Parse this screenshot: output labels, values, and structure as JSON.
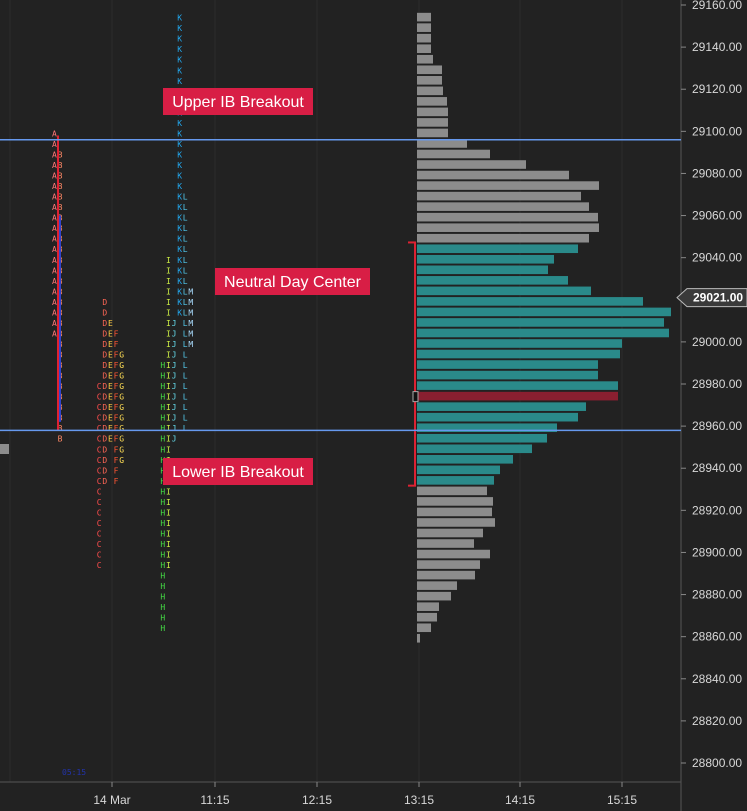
{
  "colors": {
    "background": "#222222",
    "grid": "#2c2c2c",
    "ib_line": "#6699ee",
    "value_area_bar": "#2a8a8a",
    "outer_bar": "#8c8c8c",
    "poc_bar": "#8a1f30",
    "callout_bg": "#d81e45",
    "axis_text": "#d8d8d8"
  },
  "tpo_colors": {
    "A": "#ff7777",
    "B": "#ff8866",
    "C": "#ff4d4d",
    "D": "#ff6655",
    "E": "#ffcc44",
    "F": "#ff5533",
    "G": "#ffdd55",
    "H": "#44dd44",
    "I": "#ccee44",
    "J": "#66ddee",
    "K": "#22a8ee",
    "L": "#55ccee",
    "M": "#aaddff"
  },
  "chart_data": {
    "type": "bar",
    "subtype": "market-profile",
    "y_axis": {
      "min": 28790,
      "max": 29162,
      "ticks": [
        29160,
        29140,
        29120,
        29100,
        29080,
        29060,
        29040,
        29020,
        29000,
        28980,
        28960,
        28940,
        28920,
        28900,
        28880,
        28860,
        28840,
        28820,
        28800
      ]
    },
    "x_axis": {
      "ticks": [
        "14 Mar",
        "11:15",
        "12:15",
        "13:15",
        "14:15",
        "15:15"
      ]
    },
    "current_price": "29021.00",
    "ib_high": 29096,
    "ib_low": 28958,
    "tpo_tail_label": "05:15",
    "profile_bars": [
      {
        "price": 29154,
        "value": 14
      },
      {
        "price": 29149,
        "value": 14
      },
      {
        "price": 29144,
        "value": 14
      },
      {
        "price": 29139,
        "value": 14
      },
      {
        "price": 29134,
        "value": 16
      },
      {
        "price": 29129,
        "value": 25
      },
      {
        "price": 29124,
        "value": 25
      },
      {
        "price": 29119,
        "value": 26
      },
      {
        "price": 29114,
        "value": 30
      },
      {
        "price": 29109,
        "value": 31
      },
      {
        "price": 29104,
        "value": 31
      },
      {
        "price": 29099,
        "value": 31
      },
      {
        "price": 29094,
        "value": 50
      },
      {
        "price": 29089,
        "value": 73
      },
      {
        "price": 29084,
        "value": 109
      },
      {
        "price": 29079,
        "value": 152
      },
      {
        "price": 29074,
        "value": 182
      },
      {
        "price": 29069,
        "value": 164
      },
      {
        "price": 29064,
        "value": 172
      },
      {
        "price": 29059,
        "value": 181
      },
      {
        "price": 29054,
        "value": 182
      },
      {
        "price": 29049,
        "value": 172
      },
      {
        "price": 29044,
        "value": 161
      },
      {
        "price": 29039,
        "value": 137
      },
      {
        "price": 29034,
        "value": 131
      },
      {
        "price": 29029,
        "value": 151
      },
      {
        "price": 29024,
        "value": 174
      },
      {
        "price": 29019,
        "value": 226
      },
      {
        "price": 29014,
        "value": 254
      },
      {
        "price": 29009,
        "value": 247
      },
      {
        "price": 29004,
        "value": 252
      },
      {
        "price": 28999,
        "value": 205
      },
      {
        "price": 28994,
        "value": 203
      },
      {
        "price": 28989,
        "value": 181
      },
      {
        "price": 28984,
        "value": 181
      },
      {
        "price": 28979,
        "value": 201
      },
      {
        "price": 28974,
        "value": 201
      },
      {
        "price": 28969,
        "value": 169
      },
      {
        "price": 28964,
        "value": 161
      },
      {
        "price": 28959,
        "value": 140
      },
      {
        "price": 28954,
        "value": 130
      },
      {
        "price": 28949,
        "value": 115
      },
      {
        "price": 28944,
        "value": 96
      },
      {
        "price": 28939,
        "value": 83
      },
      {
        "price": 28934,
        "value": 77
      },
      {
        "price": 28929,
        "value": 70
      },
      {
        "price": 28924,
        "value": 76
      },
      {
        "price": 28919,
        "value": 75
      },
      {
        "price": 28914,
        "value": 78
      },
      {
        "price": 28909,
        "value": 66
      },
      {
        "price": 28904,
        "value": 57
      },
      {
        "price": 28899,
        "value": 73
      },
      {
        "price": 28894,
        "value": 63
      },
      {
        "price": 28889,
        "value": 58
      },
      {
        "price": 28884,
        "value": 40
      },
      {
        "price": 28879,
        "value": 34
      },
      {
        "price": 28874,
        "value": 22
      },
      {
        "price": 28869,
        "value": 20
      },
      {
        "price": 28864,
        "value": 14
      },
      {
        "price": 28859,
        "value": 3
      }
    ],
    "value_area": {
      "high": 29044,
      "low": 28934
    },
    "poc_price": 28974,
    "annotations": [
      "Upper IB Breakout",
      "Neutral Day Center",
      "Lower IB Breakout"
    ],
    "tpo_columns": [
      {
        "letters": "A",
        "start": 29099,
        "end": 29004
      },
      {
        "letters": "B",
        "start": 29089,
        "end": 28954
      },
      {
        "letters": "C",
        "start": 28979,
        "end": 28894
      },
      {
        "letters": "D",
        "start": 29019,
        "end": 28934
      },
      {
        "letters": "E",
        "start": 29009,
        "end": 28954
      },
      {
        "letters": "F",
        "start": 29004,
        "end": 28934
      },
      {
        "letters": "G",
        "start": 28994,
        "end": 28944
      },
      {
        "letters": "H",
        "start": 28989,
        "end": 28864
      },
      {
        "letters": "I",
        "start": 29039,
        "end": 28894
      },
      {
        "letters": "J",
        "start": 29009,
        "end": 28954
      },
      {
        "letters": "K",
        "start": 29154,
        "end": 29014
      },
      {
        "letters": "L",
        "start": 29069,
        "end": 28959
      },
      {
        "letters": "M",
        "start": 29024,
        "end": 28999
      }
    ]
  }
}
